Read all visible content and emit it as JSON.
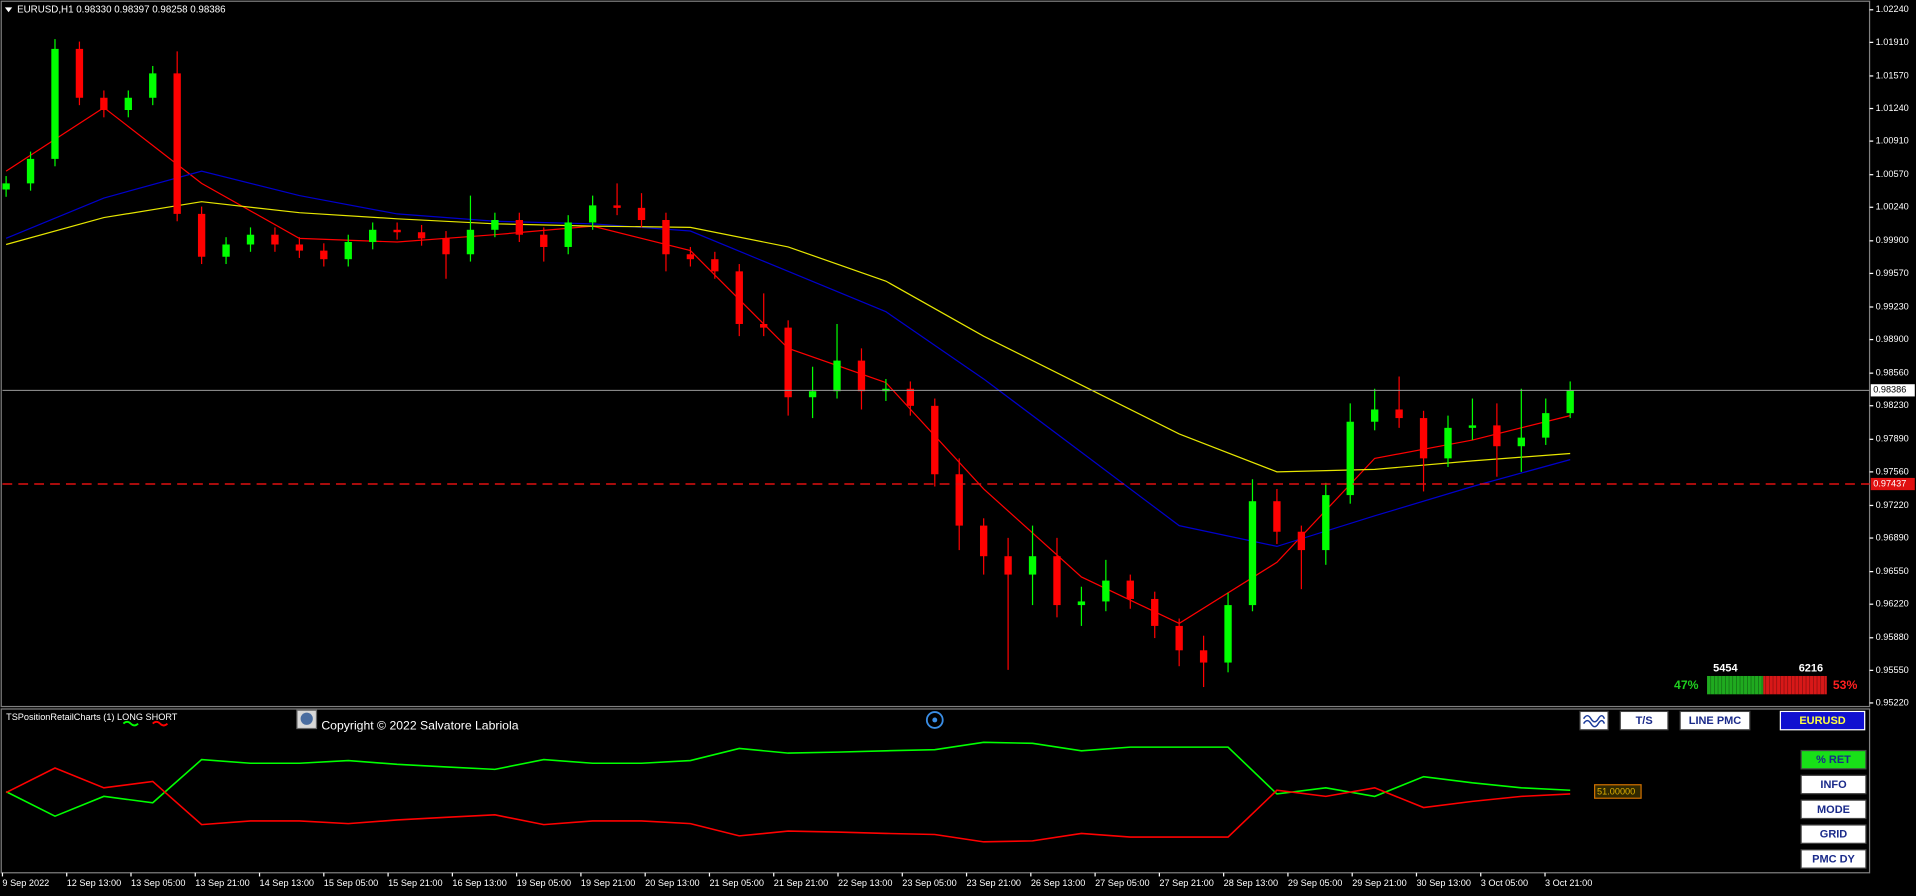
{
  "chart_data": {
    "type": "candlestick",
    "header": "EURUSD,H1  0.98330 0.98397 0.98258 0.98386",
    "up_color": "#00ff00",
    "down_color": "#ff0000",
    "candles": [
      [
        1.0042,
        1.00556,
        1.00346,
        1.00482
      ],
      [
        1.00482,
        1.00804,
        1.00408,
        1.0073
      ],
      [
        1.0073,
        1.01943,
        1.00655,
        1.01844
      ],
      [
        1.01844,
        1.01918,
        1.01274,
        1.01349
      ],
      [
        1.01349,
        1.01423,
        1.01151,
        1.01225
      ],
      [
        1.01225,
        1.01423,
        1.01151,
        1.01349
      ],
      [
        1.01349,
        1.01671,
        1.01274,
        1.01596
      ],
      [
        1.01596,
        1.01819,
        1.00098,
        1.00173
      ],
      [
        1.00173,
        1.00247,
        0.99665,
        0.99739
      ],
      [
        0.99739,
        0.99937,
        0.99665,
        0.99863
      ],
      [
        0.99863,
        1.00036,
        0.99789,
        0.99962
      ],
      [
        0.99962,
        1.00036,
        0.99789,
        0.99863
      ],
      [
        0.99863,
        0.99937,
        0.99727,
        0.99801
      ],
      [
        0.99801,
        0.99875,
        0.9964,
        0.99714
      ],
      [
        0.99714,
        0.99962,
        0.9964,
        0.99888
      ],
      [
        0.99888,
        1.00086,
        0.99814,
        1.00012
      ],
      [
        1.00012,
        1.00086,
        0.99913,
        0.99987
      ],
      [
        0.99987,
        1.00061,
        0.99851,
        0.99925
      ],
      [
        0.99925,
        0.99999,
        0.99516,
        0.99764
      ],
      [
        0.99764,
        1.00358,
        0.9969,
        1.00012
      ],
      [
        1.00012,
        1.00185,
        0.99937,
        1.00111
      ],
      [
        1.00111,
        1.00185,
        0.99888,
        0.99962
      ],
      [
        0.99962,
        1.00036,
        0.9969,
        0.99838
      ],
      [
        0.99838,
        1.0016,
        0.99764,
        1.00086
      ],
      [
        1.00086,
        1.00358,
        1.00012,
        1.00259
      ],
      [
        1.00259,
        1.00482,
        1.0016,
        1.00234
      ],
      [
        1.00234,
        1.00383,
        1.00036,
        1.00111
      ],
      [
        1.00111,
        1.00185,
        0.99591,
        0.99764
      ],
      [
        0.99764,
        0.99838,
        0.9964,
        0.99714
      ],
      [
        0.99714,
        0.99789,
        0.99516,
        0.99591
      ],
      [
        0.99591,
        0.99665,
        0.98935,
        0.99058
      ],
      [
        0.99058,
        0.99368,
        0.98935,
        0.99021
      ],
      [
        0.99021,
        0.99095,
        0.9813,
        0.98316
      ],
      [
        0.98316,
        0.98625,
        0.98105,
        0.98377
      ],
      [
        0.98377,
        0.99058,
        0.98303,
        0.98687
      ],
      [
        0.98687,
        0.98811,
        0.98192,
        0.98377
      ],
      [
        0.98377,
        0.98501,
        0.98278,
        0.98402
      ],
      [
        0.98402,
        0.98476,
        0.9813,
        0.98229
      ],
      [
        0.98229,
        0.98303,
        0.97412,
        0.97536
      ],
      [
        0.97536,
        0.97697,
        0.96768,
        0.97016
      ],
      [
        0.97016,
        0.9709,
        0.9652,
        0.96706
      ],
      [
        0.96706,
        0.96892,
        0.95555,
        0.9652
      ],
      [
        0.9652,
        0.97016,
        0.96211,
        0.96706
      ],
      [
        0.96706,
        0.96892,
        0.96087,
        0.96211
      ],
      [
        0.96211,
        0.96397,
        0.96,
        0.96248
      ],
      [
        0.96248,
        0.96669,
        0.96149,
        0.96459
      ],
      [
        0.96459,
        0.9652,
        0.96174,
        0.96273
      ],
      [
        0.96273,
        0.96347,
        0.95877,
        0.96
      ],
      [
        0.96,
        0.96075,
        0.95592,
        0.95753
      ],
      [
        0.95753,
        0.95901,
        0.95381,
        0.95629
      ],
      [
        0.95629,
        0.96335,
        0.9553,
        0.96211
      ],
      [
        0.96211,
        0.97486,
        0.96149,
        0.97263
      ],
      [
        0.97263,
        0.97387,
        0.9683,
        0.96954
      ],
      [
        0.96954,
        0.97016,
        0.96372,
        0.96768
      ],
      [
        0.96768,
        0.97449,
        0.96619,
        0.97325
      ],
      [
        0.97325,
        0.98254,
        0.97238,
        0.98068
      ],
      [
        0.98068,
        0.98402,
        0.97981,
        0.98192
      ],
      [
        0.98192,
        0.98526,
        0.98006,
        0.98105
      ],
      [
        0.98105,
        0.98179,
        0.97362,
        0.97697
      ],
      [
        0.97697,
        0.9813,
        0.9761,
        0.98006
      ],
      [
        0.98006,
        0.98303,
        0.97882,
        0.98031
      ],
      [
        0.98031,
        0.98254,
        0.97511,
        0.9782
      ],
      [
        0.9782,
        0.98402,
        0.9756,
        0.97907
      ],
      [
        0.97907,
        0.98303,
        0.97833,
        0.98155
      ],
      [
        0.98155,
        0.98476,
        0.98105,
        0.98386
      ]
    ],
    "moving_averages": [
      {
        "color": "#ff0000",
        "values": [
          1.00606,
          1.0125,
          1.00482,
          0.99925,
          0.99888,
          0.99962,
          1.00049,
          0.99801,
          0.98811,
          0.98464,
          0.97387,
          0.96496,
          0.96025,
          0.96644,
          0.97697,
          0.97882,
          0.9813
        ]
      },
      {
        "color": "#0000cc",
        "values": [
          0.99925,
          1.00333,
          1.00606,
          1.00358,
          1.00173,
          1.00098,
          1.00073,
          0.99999,
          0.99591,
          0.99182,
          0.98501,
          0.97758,
          0.97016,
          0.96805,
          0.97115,
          0.97412,
          0.97684
        ]
      },
      {
        "color": "#e6e600",
        "values": [
          0.99863,
          1.00135,
          1.00296,
          1.00185,
          1.00123,
          1.00073,
          1.00049,
          1.00036,
          0.99838,
          0.99492,
          0.98935,
          0.98439,
          0.97944,
          0.9756,
          0.97585,
          0.97672,
          0.97746
        ]
      }
    ],
    "ylim": [
      0.95196,
      1.02302
    ],
    "yticks": [
      {
        "value": 1.0224,
        "label": "1.02240"
      },
      {
        "value": 1.0191,
        "label": "1.01910"
      },
      {
        "value": 1.0157,
        "label": "1.01570"
      },
      {
        "value": 1.0124,
        "label": "1.01240"
      },
      {
        "value": 1.0091,
        "label": "1.00910"
      },
      {
        "value": 1.0057,
        "label": "1.00570"
      },
      {
        "value": 1.0024,
        "label": "1.00240"
      },
      {
        "value": 0.999,
        "label": "0.99900"
      },
      {
        "value": 0.9957,
        "label": "0.99570"
      },
      {
        "value": 0.9923,
        "label": "0.99230"
      },
      {
        "value": 0.989,
        "label": "0.98900"
      },
      {
        "value": 0.9856,
        "label": "0.98560"
      },
      {
        "value": 0.9823,
        "label": "0.98230"
      },
      {
        "value": 0.9789,
        "label": "0.97890"
      },
      {
        "value": 0.9756,
        "label": "0.97560"
      },
      {
        "value": 0.9722,
        "label": "0.97220"
      },
      {
        "value": 0.9689,
        "label": "0.96890"
      },
      {
        "value": 0.9655,
        "label": "0.96550"
      },
      {
        "value": 0.9622,
        "label": "0.96220"
      },
      {
        "value": 0.9588,
        "label": "0.95880"
      },
      {
        "value": 0.9555,
        "label": "0.95550"
      },
      {
        "value": 0.9522,
        "label": "0.95220"
      }
    ],
    "price_line": 0.98386,
    "level_line": 0.97437,
    "x_labels": [
      "9 Sep 2022",
      "12 Sep 13:00",
      "13 Sep 05:00",
      "13 Sep 21:00",
      "14 Sep 13:00",
      "15 Sep 05:00",
      "15 Sep 21:00",
      "16 Sep 13:00",
      "19 Sep 05:00",
      "19 Sep 21:00",
      "20 Sep 13:00",
      "21 Sep 05:00",
      "21 Sep 21:00",
      "22 Sep 13:00",
      "23 Sep 05:00",
      "23 Sep 21:00",
      "26 Sep 13:00",
      "27 Sep 05:00",
      "27 Sep 21:00",
      "28 Sep 13:00",
      "29 Sep 05:00",
      "29 Sep 21:00",
      "30 Sep 13:00",
      "3 Oct 05:00",
      "3 Oct 21:00"
    ]
  },
  "indicator": {
    "title": "TSPositionRetailCharts (1) LONG SHORT",
    "ylim": [
      20,
      80
    ],
    "long": {
      "color": "#00ff00",
      "values": [
        50.2,
        40.9,
        48.4,
        46.0,
        62.3,
        60.9,
        60.9,
        61.9,
        60.5,
        59.5,
        58.6,
        62.3,
        60.9,
        60.9,
        61.9,
        66.5,
        64.7,
        65.1,
        65.6,
        66.0,
        68.8,
        68.4,
        65.6,
        67.0,
        67.0,
        67.0,
        49.3,
        51.6,
        48.4,
        55.8,
        53.5,
        51.6,
        50.7
      ]
    },
    "short": {
      "color": "#ff0000",
      "values": [
        49.8,
        59.1,
        51.6,
        54.0,
        37.7,
        39.1,
        39.1,
        38.1,
        39.5,
        40.5,
        41.4,
        37.7,
        39.1,
        39.1,
        38.1,
        33.5,
        35.3,
        34.9,
        34.4,
        34.0,
        31.2,
        31.6,
        34.4,
        33.0,
        33.0,
        33.0,
        50.7,
        48.4,
        51.6,
        44.2,
        46.5,
        48.4,
        49.3
      ]
    },
    "end_label": "51.00000"
  },
  "gauge": {
    "long_count": 5454,
    "short_count": 6216,
    "long_pct": 47,
    "short_pct": 53,
    "value_labels": [
      "47%",
      "53%"
    ]
  },
  "copyright": "Copyright © 2022 Salvatore Labriola",
  "buttons_top": [
    "T/S",
    "LINE PMC",
    "EURUSD"
  ],
  "buttons_side": [
    "% RET",
    "INFO",
    "MODE",
    "GRID",
    "PMC DY"
  ]
}
